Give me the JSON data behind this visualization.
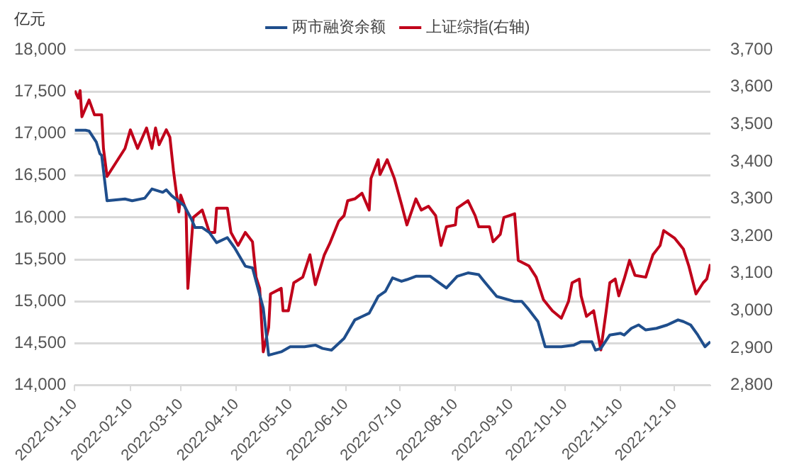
{
  "chart_data": {
    "type": "line",
    "ylabel": "亿元",
    "legend": "top",
    "grid": "y",
    "marker": "none",
    "line_style": "solid",
    "xlim": [
      "2022-01-10",
      "2022-12-30"
    ],
    "xticks": [
      "2022-01-10",
      "2022-02-10",
      "2022-03-10",
      "2022-04-10",
      "2022-05-10",
      "2022-06-10",
      "2022-07-10",
      "2022-08-10",
      "2022-09-10",
      "2022-10-10",
      "2022-11-10",
      "2022-12-10"
    ],
    "ylim": [
      14000,
      18000
    ],
    "yticks": [
      {
        "value": 14000,
        "label": "14,000"
      },
      {
        "value": 14500,
        "label": "14,500"
      },
      {
        "value": 15000,
        "label": "15,000"
      },
      {
        "value": 15500,
        "label": "15,500"
      },
      {
        "value": 16000,
        "label": "16,000"
      },
      {
        "value": 16500,
        "label": "16,500"
      },
      {
        "value": 17000,
        "label": "17,000"
      },
      {
        "value": 17500,
        "label": "17,500"
      },
      {
        "value": 18000,
        "label": "18,000"
      }
    ],
    "y2lim": [
      2800,
      3700
    ],
    "y2ticks": [
      {
        "value": 2800,
        "label": "2,800"
      },
      {
        "value": 2900,
        "label": "2,900"
      },
      {
        "value": 3000,
        "label": "3,000"
      },
      {
        "value": 3100,
        "label": "3,100"
      },
      {
        "value": 3200,
        "label": "3,200"
      },
      {
        "value": 3300,
        "label": "3,300"
      },
      {
        "value": 3400,
        "label": "3,400"
      },
      {
        "value": 3500,
        "label": "3,500"
      },
      {
        "value": 3600,
        "label": "3,600"
      },
      {
        "value": 3700,
        "label": "3,700"
      }
    ],
    "series": [
      {
        "name": "两市融资余额",
        "color": "#1f4e8c",
        "x": [
          "2022-01-10",
          "2022-01-16",
          "2022-01-18",
          "2022-01-22",
          "2022-01-24",
          "2022-01-25",
          "2022-01-28",
          "2022-02-07",
          "2022-02-11",
          "2022-02-18",
          "2022-02-22",
          "2022-02-28",
          "2022-03-02",
          "2022-03-05",
          "2022-03-12",
          "2022-03-16",
          "2022-03-18",
          "2022-03-22",
          "2022-03-26",
          "2022-03-30",
          "2022-04-05",
          "2022-04-09",
          "2022-04-15",
          "2022-04-19",
          "2022-04-21",
          "2022-04-25",
          "2022-04-28",
          "2022-05-05",
          "2022-05-10",
          "2022-05-18",
          "2022-05-24",
          "2022-05-28",
          "2022-06-02",
          "2022-06-09",
          "2022-06-15",
          "2022-06-23",
          "2022-06-28",
          "2022-07-02",
          "2022-07-06",
          "2022-07-11",
          "2022-07-14",
          "2022-07-19",
          "2022-07-27",
          "2022-08-05",
          "2022-08-11",
          "2022-08-17",
          "2022-08-23",
          "2022-08-26",
          "2022-09-02",
          "2022-09-12",
          "2022-09-16",
          "2022-09-20",
          "2022-09-25",
          "2022-09-29",
          "2022-10-08",
          "2022-10-15",
          "2022-10-19",
          "2022-10-25",
          "2022-10-27",
          "2022-10-30",
          "2022-11-04",
          "2022-11-10",
          "2022-11-12",
          "2022-11-16",
          "2022-11-20",
          "2022-11-24",
          "2022-11-30",
          "2022-12-06",
          "2022-12-08",
          "2022-12-12",
          "2022-12-15",
          "2022-12-19",
          "2022-12-23",
          "2022-12-27",
          "2022-12-30"
        ],
        "values": [
          17040,
          17040,
          17030,
          16900,
          16760,
          16740,
          16200,
          16220,
          16200,
          16230,
          16340,
          16300,
          16330,
          16260,
          16140,
          15980,
          15880,
          15880,
          15820,
          15700,
          15760,
          15640,
          15420,
          15400,
          15240,
          14920,
          14360,
          14400,
          14460,
          14460,
          14480,
          14440,
          14420,
          14560,
          14780,
          14860,
          15060,
          15120,
          15280,
          15240,
          15260,
          15300,
          15300,
          15160,
          15300,
          15340,
          15320,
          15240,
          15060,
          15000,
          15000,
          14900,
          14760,
          14460,
          14460,
          14480,
          14520,
          14520,
          14420,
          14440,
          14600,
          14620,
          14600,
          14680,
          14720,
          14660,
          14680,
          14720,
          14740,
          14780,
          14760,
          14720,
          14600,
          14460,
          14520
        ]
      },
      {
        "name": "上证综指(右轴)",
        "color": "#c0001a",
        "axis": "y2",
        "x": [
          "2022-01-10",
          "2022-01-12",
          "2022-01-13",
          "2022-01-14",
          "2022-01-18",
          "2022-01-21",
          "2022-01-25",
          "2022-01-26",
          "2022-01-28",
          "2022-02-07",
          "2022-02-10",
          "2022-02-14",
          "2022-02-19",
          "2022-02-22",
          "2022-02-24",
          "2022-02-26",
          "2022-03-02",
          "2022-03-04",
          "2022-03-06",
          "2022-03-09",
          "2022-03-10",
          "2022-03-13",
          "2022-03-14",
          "2022-03-17",
          "2022-03-22",
          "2022-03-26",
          "2022-03-29",
          "2022-03-30",
          "2022-04-05",
          "2022-04-07",
          "2022-04-11",
          "2022-04-15",
          "2022-04-19",
          "2022-04-21",
          "2022-04-23",
          "2022-04-25",
          "2022-04-28",
          "2022-04-29",
          "2022-05-05",
          "2022-05-06",
          "2022-05-09",
          "2022-05-12",
          "2022-05-17",
          "2022-05-21",
          "2022-05-24",
          "2022-05-29",
          "2022-06-01",
          "2022-06-06",
          "2022-06-09",
          "2022-06-11",
          "2022-06-15",
          "2022-06-19",
          "2022-06-23",
          "2022-06-24",
          "2022-06-28",
          "2022-06-29",
          "2022-07-03",
          "2022-07-07",
          "2022-07-11",
          "2022-07-14",
          "2022-07-19",
          "2022-07-22",
          "2022-07-26",
          "2022-07-30",
          "2022-08-02",
          "2022-08-05",
          "2022-08-10",
          "2022-08-11",
          "2022-08-17",
          "2022-08-21",
          "2022-08-23",
          "2022-08-29",
          "2022-08-31",
          "2022-09-04",
          "2022-09-06",
          "2022-09-12",
          "2022-09-14",
          "2022-09-20",
          "2022-09-24",
          "2022-09-28",
          "2022-10-03",
          "2022-10-08",
          "2022-10-12",
          "2022-10-14",
          "2022-10-18",
          "2022-10-19",
          "2022-10-22",
          "2022-10-26",
          "2022-10-30",
          "2022-11-02",
          "2022-11-04",
          "2022-11-07",
          "2022-11-09",
          "2022-11-12",
          "2022-11-15",
          "2022-11-18",
          "2022-11-24",
          "2022-11-28",
          "2022-12-02",
          "2022-12-04",
          "2022-12-10",
          "2022-12-15",
          "2022-12-18",
          "2022-12-22",
          "2022-12-26",
          "2022-12-28",
          "2022-12-30"
        ],
        "values": [
          3590,
          3570,
          3590,
          3520,
          3565,
          3525,
          3525,
          3435,
          3360,
          3435,
          3485,
          3435,
          3490,
          3435,
          3490,
          3445,
          3485,
          3465,
          3375,
          3265,
          3310,
          3270,
          3060,
          3250,
          3270,
          3210,
          3210,
          3275,
          3275,
          3210,
          3175,
          3210,
          3185,
          3090,
          3060,
          2890,
          2955,
          3045,
          3060,
          3000,
          3000,
          3075,
          3090,
          3150,
          3070,
          3150,
          3180,
          3240,
          3255,
          3295,
          3300,
          3315,
          3270,
          3355,
          3405,
          3365,
          3405,
          3355,
          3285,
          3230,
          3300,
          3270,
          3280,
          3255,
          3175,
          3225,
          3230,
          3275,
          3295,
          3255,
          3225,
          3225,
          3185,
          3205,
          3250,
          3260,
          3135,
          3120,
          3090,
          3030,
          3000,
          2980,
          3025,
          3075,
          3085,
          3040,
          2985,
          3000,
          2895,
          3000,
          3075,
          3085,
          3040,
          3085,
          3135,
          3095,
          3090,
          3150,
          3175,
          3215,
          3195,
          3165,
          3120,
          3045,
          3075,
          3085,
          3125
        ]
      }
    ]
  }
}
